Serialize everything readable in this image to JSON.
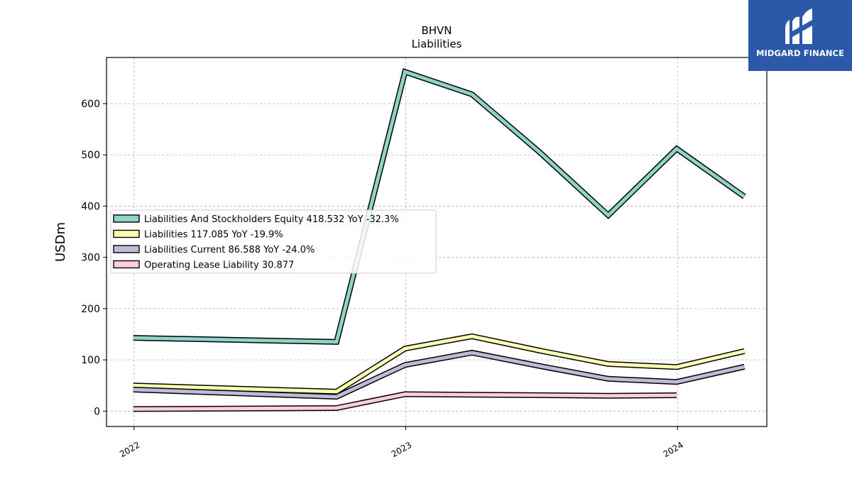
{
  "brand": {
    "name": "MIDGARD FINANCE",
    "bg_color": "#2b58a8"
  },
  "chart_data": {
    "type": "line",
    "title": "BHVN",
    "subtitle": "Liabilities",
    "xlabel": "",
    "ylabel": "USDm",
    "x": [
      "2021-12-31",
      "2022-09-30",
      "2022-12-31",
      "2023-03-31",
      "2023-06-30",
      "2023-09-30",
      "2023-12-31",
      "2024-03-31"
    ],
    "xlim": [
      "2021-11-25",
      "2024-04-30"
    ],
    "xticks": [
      "2022",
      "2023",
      "2024"
    ],
    "ylim": [
      -30,
      690
    ],
    "yticks": [
      0,
      100,
      200,
      300,
      400,
      500,
      600
    ],
    "grid": true,
    "legend_position": "center-left",
    "series": [
      {
        "name": "Liabilities And Stockholders Equity",
        "legend_label": "Liabilities And Stockholders Equity  418.532 YoY -32.3%",
        "color": "#8dd3c7",
        "values": [
          143,
          135,
          662,
          618,
          505,
          382,
          512,
          418.532
        ]
      },
      {
        "name": "Liabilities",
        "legend_label": "Liabilities  117.085 YoY -19.9%",
        "color": "#ffffb3",
        "values": [
          50,
          38,
          122,
          146,
          118,
          92,
          86,
          117.085
        ]
      },
      {
        "name": "Liabilities Current",
        "legend_label": "Liabilities Current  86.588 YoY -24.0%",
        "color": "#bebada",
        "values": [
          42,
          28,
          90,
          114,
          88,
          63,
          57,
          86.588
        ]
      },
      {
        "name": "Operating Lease Liability",
        "legend_label": "Operating Lease Liability  30.877",
        "color": "#fccde5",
        "values": [
          4,
          6,
          33,
          32,
          31,
          30,
          30.877,
          null
        ]
      }
    ]
  }
}
